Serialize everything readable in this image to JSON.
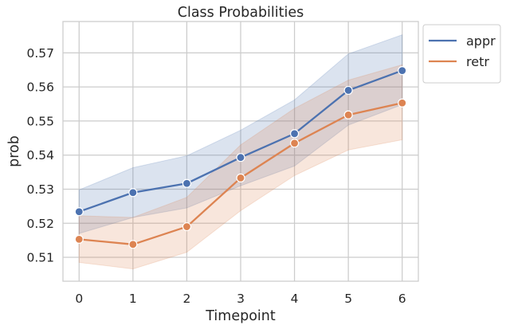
{
  "chart_data": {
    "type": "line",
    "title": "Class Probabilities",
    "xlabel": "Timepoint",
    "ylabel": "prob",
    "x": [
      0,
      1,
      2,
      3,
      4,
      5,
      6
    ],
    "xticks": [
      "0",
      "1",
      "2",
      "3",
      "4",
      "5",
      "6"
    ],
    "yticks": [
      "0.51",
      "0.52",
      "0.53",
      "0.54",
      "0.55",
      "0.56",
      "0.57"
    ],
    "xlim": [
      -0.3,
      6.3
    ],
    "ylim": [
      0.503,
      0.5792
    ],
    "grid": true,
    "legend_position": "upper-right-outside",
    "series": [
      {
        "name": "appr",
        "color": "#4c72b0",
        "values": [
          0.5234,
          0.529,
          0.5317,
          0.5393,
          0.5463,
          0.559,
          0.5648
        ],
        "ci_low": [
          0.517,
          0.5217,
          0.5245,
          0.531,
          0.5368,
          0.5488,
          0.5548
        ],
        "ci_high": [
          0.5298,
          0.5363,
          0.5398,
          0.5473,
          0.5562,
          0.5697,
          0.5753
        ]
      },
      {
        "name": "retr",
        "color": "#dd8452",
        "values": [
          0.5153,
          0.5138,
          0.519,
          0.5333,
          0.5435,
          0.5518,
          0.5553
        ],
        "ci_low": [
          0.5085,
          0.5066,
          0.5115,
          0.5237,
          0.534,
          0.5415,
          0.5445
        ],
        "ci_high": [
          0.5222,
          0.5217,
          0.5276,
          0.543,
          0.5537,
          0.562,
          0.5665
        ]
      }
    ]
  }
}
